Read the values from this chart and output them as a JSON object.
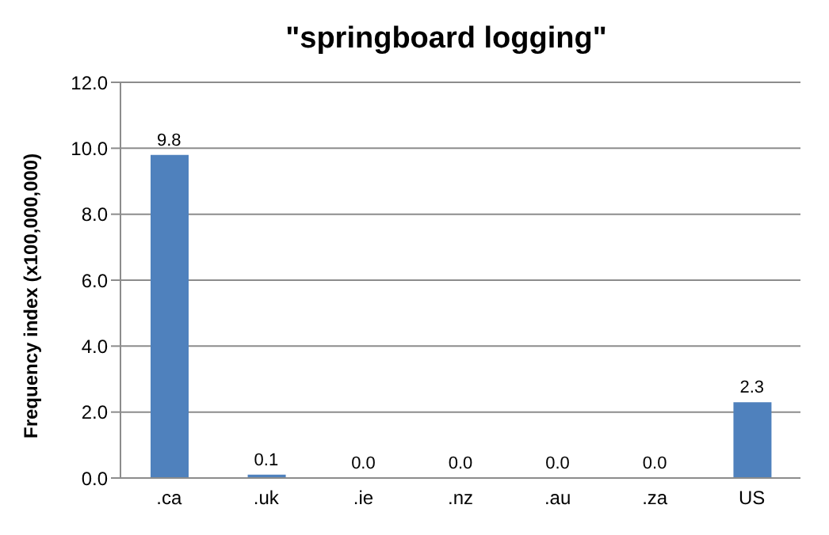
{
  "chart_data": {
    "type": "bar",
    "title": "\"springboard logging\"",
    "ylabel": "Frequency index (x100,000,000)",
    "categories": [
      ".ca",
      ".uk",
      ".ie",
      ".nz",
      ".au",
      ".za",
      "US"
    ],
    "values": [
      9.8,
      0.1,
      0,
      0,
      0,
      0,
      2.3
    ],
    "value_labels": [
      "9.8",
      "0.1",
      "0.0",
      "0.0",
      "0.0",
      "0.0",
      "2.3"
    ],
    "color": "#4f81bd",
    "ylim": [
      0,
      12
    ],
    "yticks": [
      {
        "value": 0,
        "label": "0.0"
      },
      {
        "value": 2,
        "label": "2.0"
      },
      {
        "value": 4,
        "label": "4.0"
      },
      {
        "value": 6,
        "label": "6.0"
      },
      {
        "value": 8,
        "label": "8.0"
      },
      {
        "value": 10,
        "label": "10.0"
      },
      {
        "value": 12,
        "label": "12.0"
      }
    ],
    "grid": "y"
  }
}
